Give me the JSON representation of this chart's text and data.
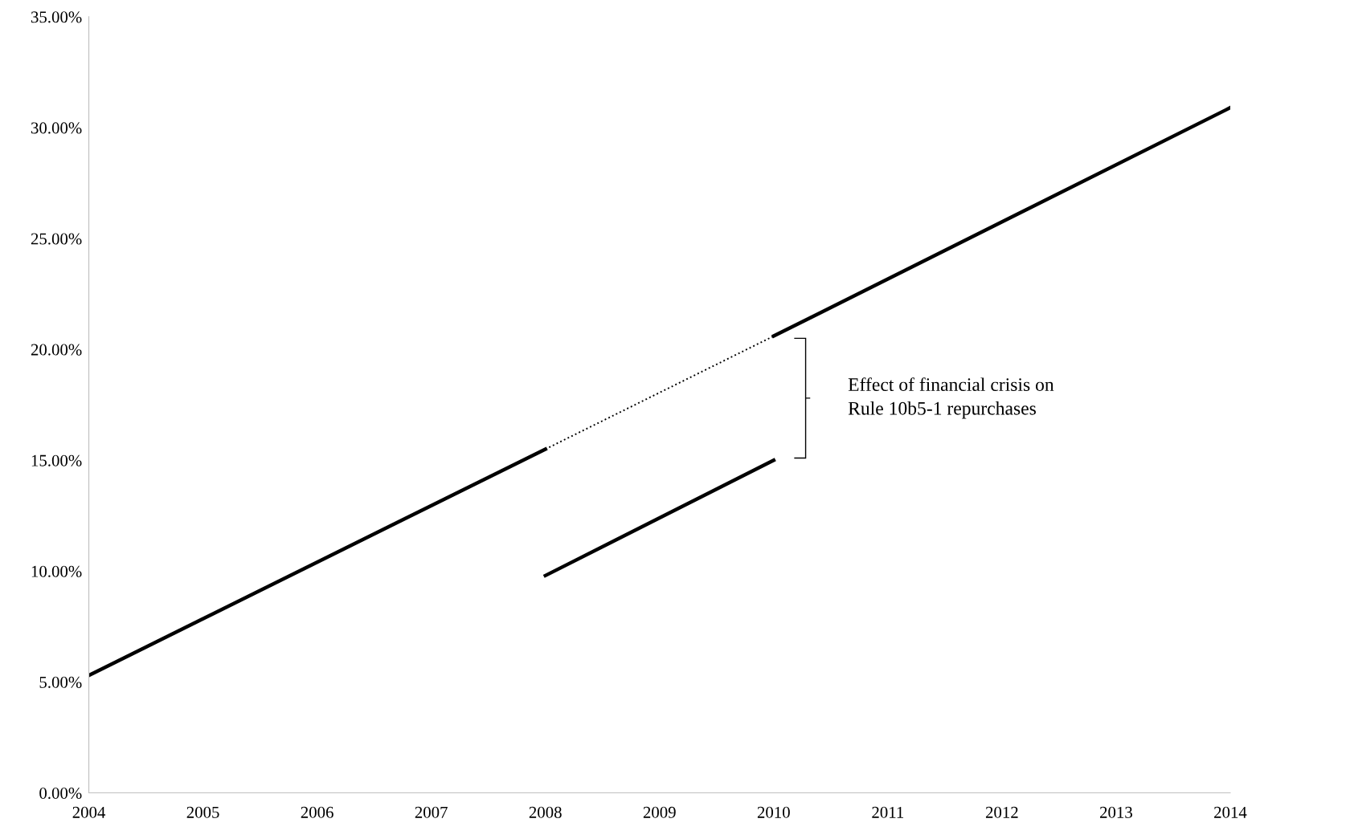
{
  "chart_data": {
    "type": "line",
    "series": [
      {
        "color": "#000000",
        "line_style": "solid",
        "x": [
          2004,
          2008
        ],
        "values": [
          5.3,
          15.5
        ]
      },
      {
        "color": "#000000",
        "line_style": "dotted",
        "x": [
          2008,
          2010
        ],
        "values": [
          15.5,
          20.6
        ]
      },
      {
        "color": "#000000",
        "line_style": "solid",
        "x": [
          2010,
          2014
        ],
        "values": [
          20.6,
          30.9
        ]
      },
      {
        "color": "#000000",
        "line_style": "solid",
        "x": [
          2008,
          2010
        ],
        "values": [
          9.8,
          15.0
        ]
      }
    ],
    "xlim": [
      2004,
      2014
    ],
    "xticks": [
      2004,
      2005,
      2006,
      2007,
      2008,
      2009,
      2010,
      2011,
      2012,
      2013,
      2014
    ],
    "ylim": [
      0,
      35
    ],
    "yticks": [
      {
        "value": 0,
        "label": "0.00%"
      },
      {
        "value": 5,
        "label": "5.00%"
      },
      {
        "value": 10,
        "label": "10.00%"
      },
      {
        "value": 15,
        "label": "15.00%"
      },
      {
        "value": 20,
        "label": "20.00%"
      },
      {
        "value": 25,
        "label": "25.00%"
      },
      {
        "value": 30,
        "label": "30.00%"
      },
      {
        "value": 35,
        "label": "35.00%"
      }
    ],
    "annotations": [
      "Effect of financial crisis on\nRule 10b5-1 repurchases"
    ],
    "grid": false,
    "legend": false,
    "marker": "none"
  }
}
